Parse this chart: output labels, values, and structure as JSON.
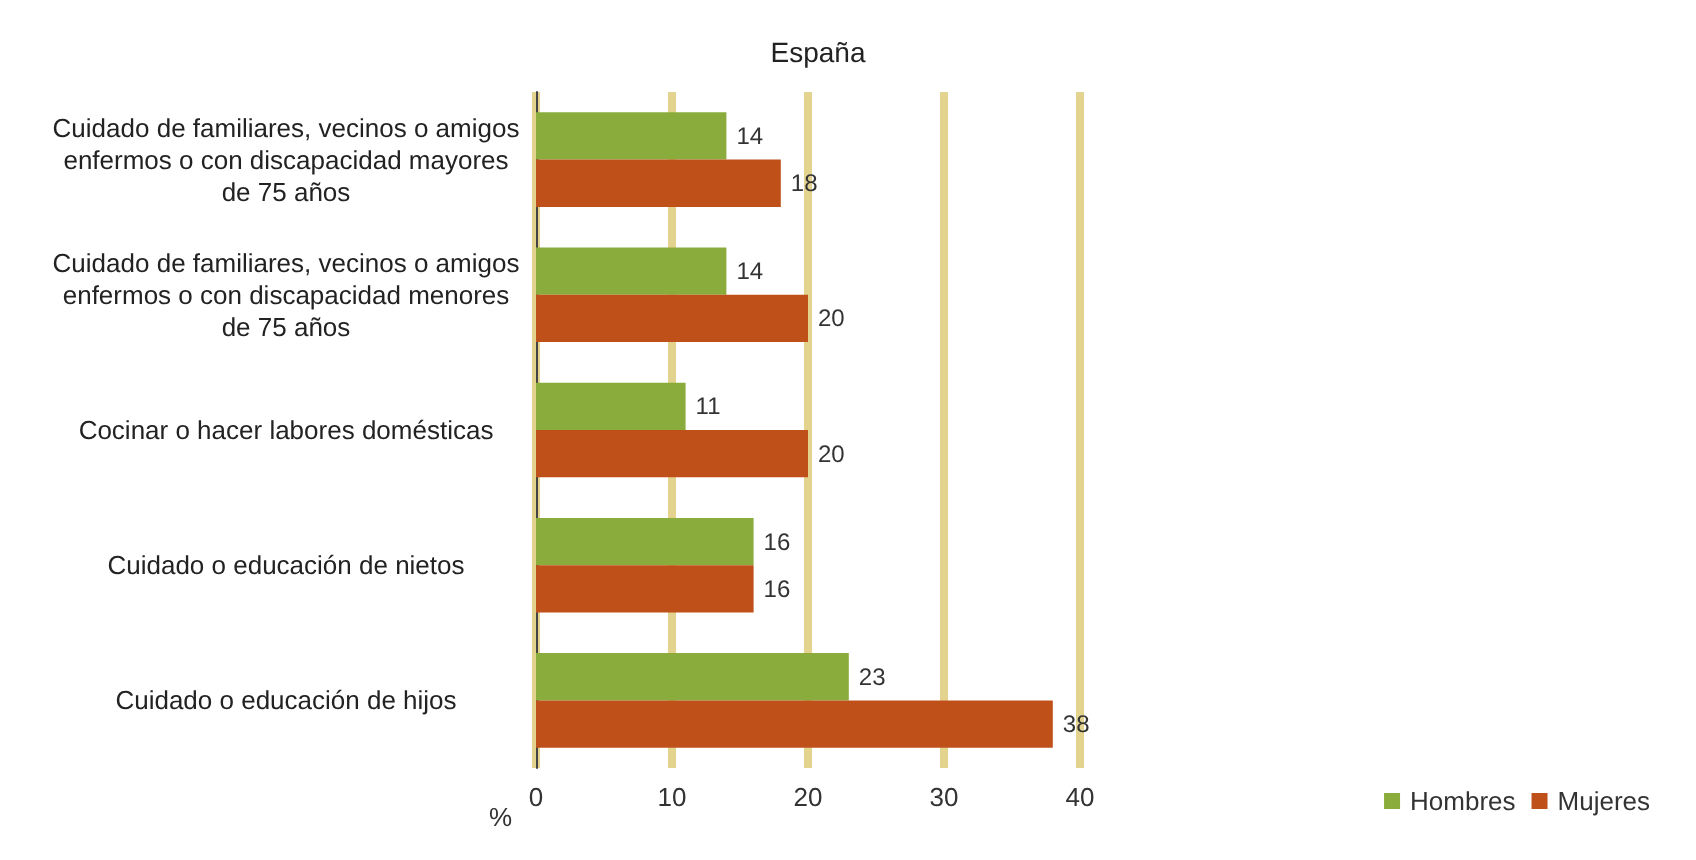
{
  "chart_data": {
    "type": "bar",
    "orientation": "horizontal",
    "title": "España",
    "xlabel": "%",
    "categories": [
      "Cuidado de familiares, vecinos o amigos enfermos o con discapacidad mayores de 75 años",
      "Cuidado de familiares, vecinos o amigos enfermos o con discapacidad menores de 75 años",
      "Cocinar o hacer labores domésticas",
      "Cuidado o educación de nietos",
      "Cuidado o educación de hijos"
    ],
    "series": [
      {
        "name": "Hombres",
        "color": "#8aac3c",
        "values": [
          14,
          14,
          11,
          16,
          23
        ]
      },
      {
        "name": "Mujeres",
        "color": "#c0501a",
        "values": [
          18,
          20,
          20,
          16,
          38
        ]
      }
    ],
    "xlim": [
      0,
      40
    ],
    "xticks": [
      0,
      10,
      20,
      30,
      40
    ],
    "grid": "x",
    "legend": "bottom right",
    "data_labels": true
  }
}
